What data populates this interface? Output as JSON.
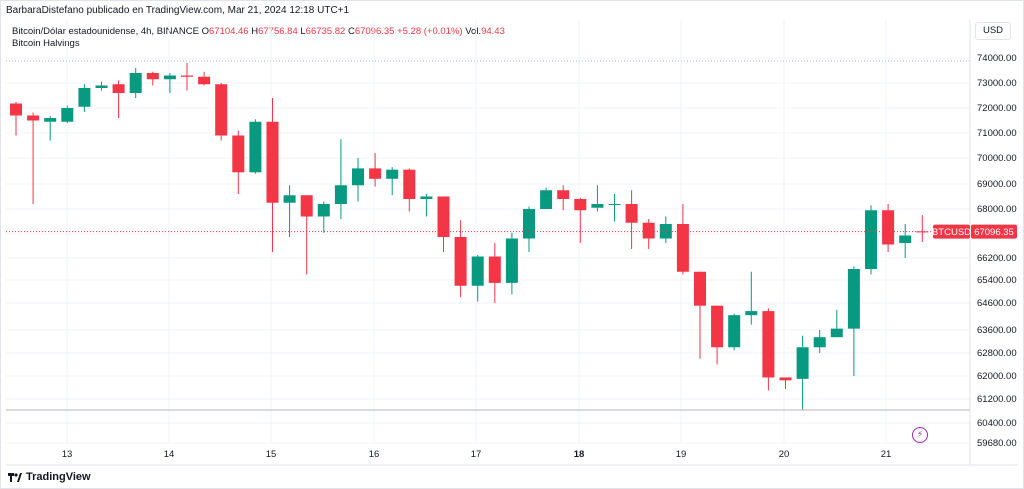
{
  "header": {
    "attribution": "BarbaraDistefano publicado en TradingView.com, Mar 21, 2024 12:18 UTC+1",
    "symbol": "Bitcoin/Dólar estadounidense, 4h, BINANCE",
    "ohlc": [
      {
        "label": "O",
        "value": "67104.46"
      },
      {
        "label": "H",
        "value": "67756.84"
      },
      {
        "label": "L",
        "value": "66735.82"
      },
      {
        "label": "C",
        "value": "67096.35"
      }
    ],
    "change": "+5.28 (+0.01%)",
    "volume_label": "Vol.",
    "volume_value": "94.43",
    "indicator": "Bitcoin Halvings"
  },
  "currency": "USD",
  "brand": "TradingView",
  "colors": {
    "up": "#089981",
    "down": "#f23645",
    "grid": "#f0f3fa",
    "text": "#131722",
    "indicator": "#9c27b0"
  },
  "chart_data": {
    "type": "candlestick",
    "symbol_tag": "BTCUSD",
    "last_price": "67096.35",
    "y_ticks": [
      "74000.00",
      "73000.00",
      "72000.00",
      "71000.00",
      "70000.00",
      "69000.00",
      "68000.00",
      "67000.00",
      "66200.00",
      "65400.00",
      "64600.00",
      "63600.00",
      "62800.00",
      "62000.00",
      "61200.00",
      "60400.00",
      "59680.00"
    ],
    "x_ticks": [
      {
        "label": "13",
        "bold": false
      },
      {
        "label": "14",
        "bold": false
      },
      {
        "label": "15",
        "bold": false
      },
      {
        "label": "16",
        "bold": false
      },
      {
        "label": "17",
        "bold": false
      },
      {
        "label": "18",
        "bold": true
      },
      {
        "label": "19",
        "bold": false
      },
      {
        "label": "20",
        "bold": false
      },
      {
        "label": "21",
        "bold": false
      }
    ],
    "candles": [
      [
        72180,
        71700,
        72250,
        70900
      ],
      [
        71700,
        71500,
        71820,
        68200
      ],
      [
        71450,
        71600,
        71680,
        70700
      ],
      [
        71450,
        72000,
        72100,
        71400
      ],
      [
        72050,
        72800,
        72950,
        71850
      ],
      [
        72800,
        72900,
        73050,
        72700
      ],
      [
        72950,
        72600,
        73100,
        71600
      ],
      [
        72600,
        73400,
        73600,
        72400
      ],
      [
        73400,
        73150,
        73450,
        72900
      ],
      [
        73150,
        73300,
        73400,
        72600
      ],
      [
        73300,
        73250,
        73800,
        72700
      ],
      [
        73250,
        72950,
        73450,
        72900
      ],
      [
        72950,
        70900,
        73000,
        70700
      ],
      [
        70900,
        69450,
        71100,
        68600
      ],
      [
        69450,
        71450,
        71550,
        69400
      ],
      [
        71450,
        68250,
        72400,
        66400
      ],
      [
        68250,
        68550,
        68950,
        66900
      ],
      [
        68550,
        67700,
        68550,
        65600
      ],
      [
        67700,
        68200,
        68300,
        67050
      ],
      [
        68200,
        68950,
        70750,
        67600
      ],
      [
        68950,
        69600,
        70000,
        68300
      ],
      [
        69600,
        69200,
        70200,
        68900
      ],
      [
        69200,
        69550,
        69650,
        68550
      ],
      [
        69550,
        68400,
        69600,
        67900
      ],
      [
        68400,
        68500,
        68600,
        67700
      ],
      [
        68500,
        66900,
        68500,
        66400
      ],
      [
        66900,
        65200,
        67550,
        64800
      ],
      [
        65200,
        66250,
        66300,
        64650
      ],
      [
        66250,
        65300,
        66700,
        64600
      ],
      [
        65300,
        66850,
        67050,
        64900
      ],
      [
        66850,
        68000,
        68100,
        66400
      ],
      [
        68000,
        68750,
        68850,
        68000
      ],
      [
        68750,
        68400,
        68950,
        67950
      ],
      [
        68400,
        67950,
        68450,
        66700
      ],
      [
        68050,
        68200,
        68950,
        67900
      ],
      [
        68200,
        68200,
        68600,
        67500
      ],
      [
        68200,
        67450,
        68750,
        66500
      ],
      [
        67450,
        66850,
        67600,
        66500
      ],
      [
        66850,
        67400,
        67700,
        66700
      ],
      [
        67400,
        65700,
        68200,
        65600
      ],
      [
        65700,
        64500,
        65700,
        62600
      ],
      [
        64500,
        63000,
        64500,
        62400
      ],
      [
        63000,
        64150,
        64200,
        62900
      ],
      [
        64150,
        64300,
        65700,
        63800
      ],
      [
        64300,
        61950,
        64400,
        61500
      ],
      [
        61950,
        61850,
        61950,
        61550
      ],
      [
        61900,
        63000,
        63400,
        60850
      ],
      [
        63000,
        63350,
        63600,
        62800
      ],
      [
        63350,
        63650,
        64350,
        63350
      ],
      [
        63650,
        65800,
        65900,
        62000
      ],
      [
        65800,
        67950,
        68150,
        65600
      ],
      [
        67950,
        66650,
        68200,
        66400
      ],
      [
        66700,
        66950,
        67400,
        66200
      ],
      [
        67104.46,
        67096.35,
        67756.84,
        66735.82
      ]
    ]
  }
}
